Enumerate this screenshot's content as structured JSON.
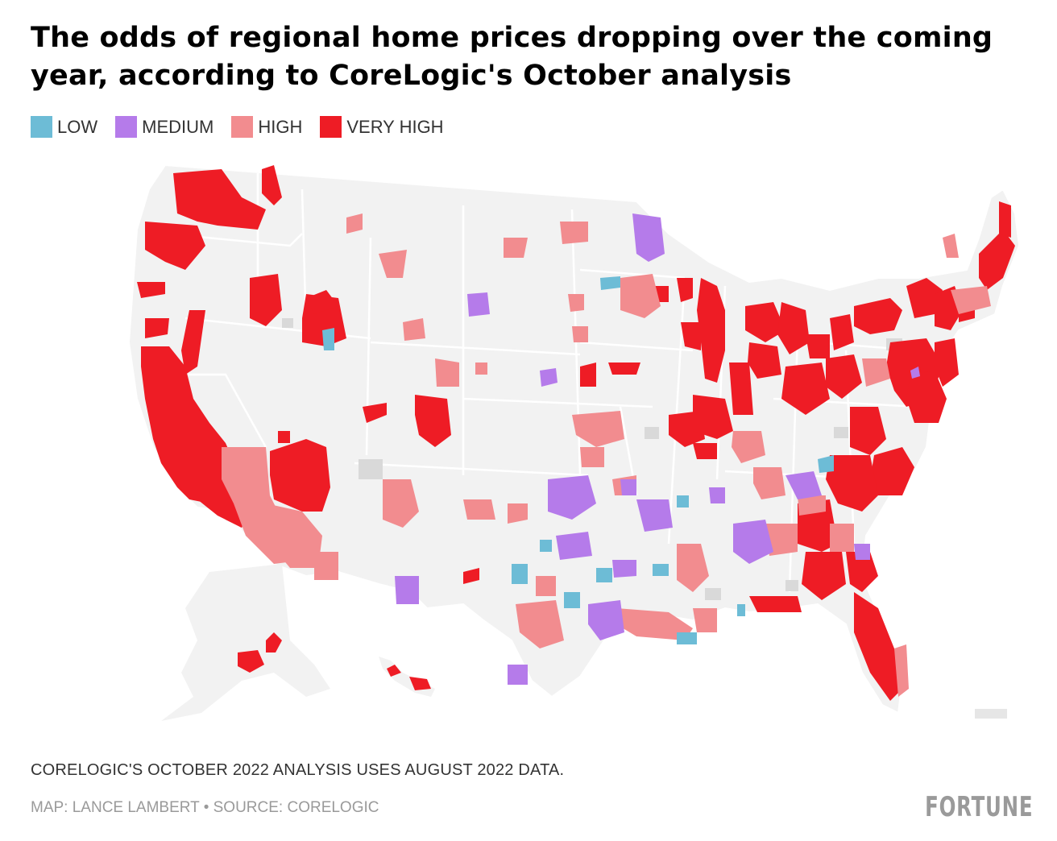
{
  "title": "The odds of regional home prices dropping over the coming year, according to CoreLogic's October analysis",
  "legend": [
    {
      "label": "LOW",
      "color": "#6dbcd6"
    },
    {
      "label": "MEDIUM",
      "color": "#b57bea"
    },
    {
      "label": "HIGH",
      "color": "#f28c8f"
    },
    {
      "label": "VERY HIGH",
      "color": "#ee1c25"
    }
  ],
  "map_colors": {
    "land": "#f2f2f2",
    "border": "#ffffff",
    "no_data": "#d9d9d9"
  },
  "note": "CORELOGIC'S OCTOBER 2022 ANALYSIS USES AUGUST 2022 DATA.",
  "credit": "MAP: LANCE LAMBERT • SOURCE: CORELOGIC",
  "logo": "FORTUNE"
}
